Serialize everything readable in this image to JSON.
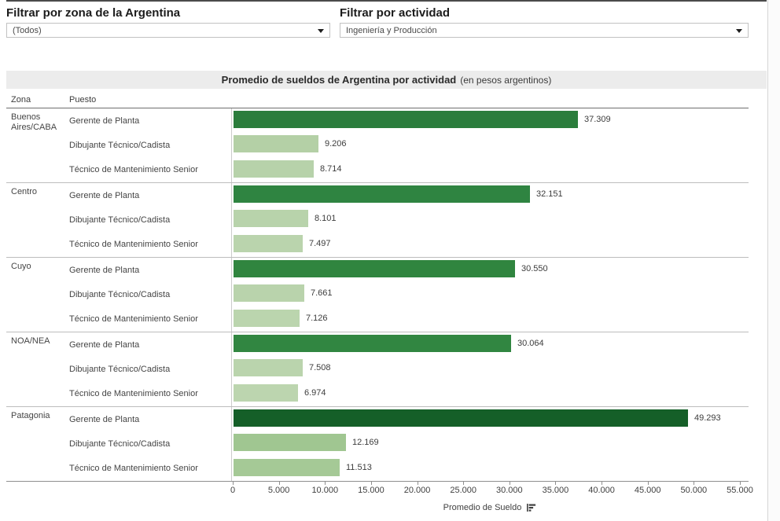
{
  "filters": [
    {
      "label": "Filtrar por zona de la Argentina",
      "value": "(Todos)"
    },
    {
      "label": "Filtrar por actividad",
      "value": "Ingeniería y Producción"
    }
  ],
  "table": {
    "title_main": "Promedio de sueldos de Argentina por actividad",
    "title_suffix": "(en pesos argentinos)",
    "zona_header": "Zona",
    "puesto_header": "Puesto"
  },
  "axis": {
    "title": "Promedio de Sueldo",
    "tick_labels": [
      "0",
      "5.000",
      "10.000",
      "15.000",
      "20.000",
      "25.000",
      "30.000",
      "35.000",
      "40.000",
      "45.000",
      "50.000",
      "55.000"
    ],
    "max": 55000
  },
  "colors": {
    "dark_green": "#155f28",
    "medium_green": "#2e8040",
    "light_green": "#b7d2aa",
    "title_band_bg": "#ececec"
  },
  "chart_data": {
    "type": "bar",
    "orientation": "horizontal",
    "title": "Promedio de sueldos de Argentina por actividad (en pesos argentinos)",
    "xlabel": "Promedio de Sueldo",
    "row_header_columns": [
      "Zona",
      "Puesto"
    ],
    "xlim": [
      0,
      55000
    ],
    "x_ticks": [
      0,
      5000,
      10000,
      15000,
      20000,
      25000,
      30000,
      35000,
      40000,
      45000,
      50000,
      55000
    ],
    "grid": false,
    "legend": false,
    "groups": [
      {
        "zona": "Buenos Aires/CABA",
        "rows": [
          {
            "puesto": "Gerente de Planta",
            "value": 37309,
            "label": "37.309",
            "color": "#2b7d3c"
          },
          {
            "puesto": "Dibujante Técnico/Cadista",
            "value": 9206,
            "label": "9.206",
            "color": "#b4d0a6"
          },
          {
            "puesto": "Técnico de Mantenimiento Senior",
            "value": 8714,
            "label": "8.714",
            "color": "#b7d2aa"
          }
        ]
      },
      {
        "zona": "Centro",
        "rows": [
          {
            "puesto": "Gerente de Planta",
            "value": 32151,
            "label": "32.151",
            "color": "#2f8441"
          },
          {
            "puesto": "Dibujante Técnico/Cadista",
            "value": 8101,
            "label": "8.101",
            "color": "#b8d3ab"
          },
          {
            "puesto": "Técnico de Mantenimiento Senior",
            "value": 7497,
            "label": "7.497",
            "color": "#bad4ad"
          }
        ]
      },
      {
        "zona": "Cuyo",
        "rows": [
          {
            "puesto": "Gerente de Planta",
            "value": 30550,
            "label": "30.550",
            "color": "#30853f"
          },
          {
            "puesto": "Dibujante Técnico/Cadista",
            "value": 7661,
            "label": "7.661",
            "color": "#b9d3ac"
          },
          {
            "puesto": "Técnico de Mantenimiento Senior",
            "value": 7126,
            "label": "7.126",
            "color": "#bbd5ae"
          }
        ]
      },
      {
        "zona": "NOA/NEA",
        "rows": [
          {
            "puesto": "Gerente de Planta",
            "value": 30064,
            "label": "30.064",
            "color": "#318641"
          },
          {
            "puesto": "Dibujante Técnico/Cadista",
            "value": 7508,
            "label": "7.508",
            "color": "#bad4ad"
          },
          {
            "puesto": "Técnico de Mantenimiento Senior",
            "value": 6974,
            "label": "6.974",
            "color": "#bcd5af"
          }
        ]
      },
      {
        "zona": "Patagonia",
        "rows": [
          {
            "puesto": "Gerente de Planta",
            "value": 49293,
            "label": "49.293",
            "color": "#155f28"
          },
          {
            "puesto": "Dibujante Técnico/Cadista",
            "value": 12169,
            "label": "12.169",
            "color": "#a0c691"
          },
          {
            "puesto": "Técnico de Mantenimiento Senior",
            "value": 11513,
            "label": "11.513",
            "color": "#a5c996"
          }
        ]
      }
    ]
  }
}
